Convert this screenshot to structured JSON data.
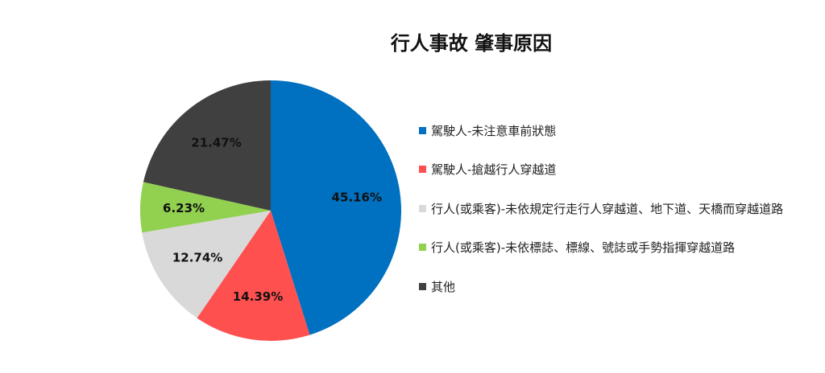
{
  "chart_data": {
    "type": "pie",
    "title": "行人事故 肇事原因",
    "categories": [
      "駕駛人-未注意車前狀態",
      "駕駛人-搶越行人穿越道",
      "行人(或乘客)-未依規定行走行人穿越道、地下道、天橋而穿越道路",
      "行人(或乘客)-未依標誌、標線、號誌或手勢指揮穿越道路",
      "其他"
    ],
    "values": [
      45.16,
      14.39,
      12.74,
      6.23,
      21.47
    ],
    "value_labels": [
      "45.16%",
      "14.39%",
      "12.74%",
      "6.23%",
      "21.47%"
    ],
    "colors": [
      "#0070C0",
      "#FF5050",
      "#D9D9D9",
      "#92D050",
      "#404040"
    ],
    "start_angle": "12 o'clock",
    "direction": "clockwise",
    "legend_position": "right"
  }
}
